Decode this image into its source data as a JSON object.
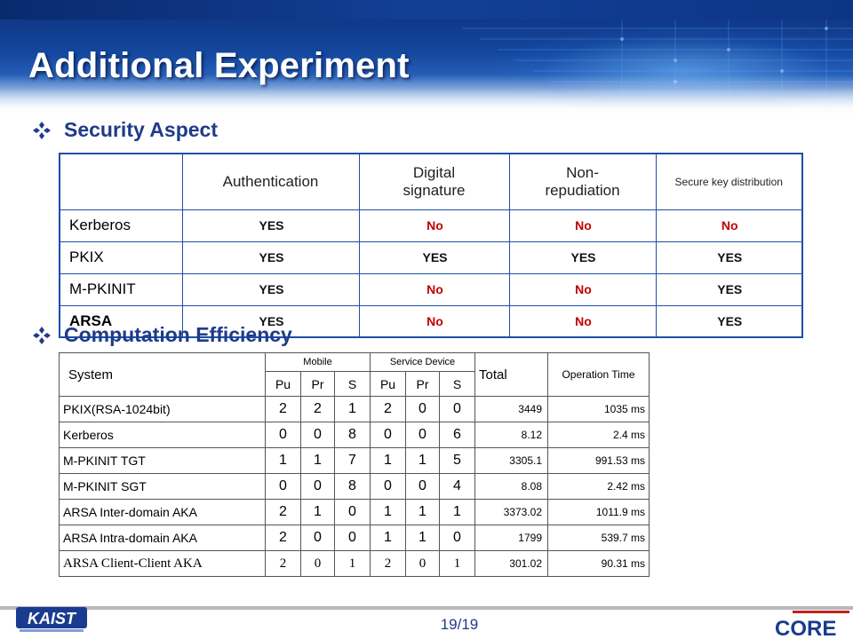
{
  "slide": {
    "title": "Additional Experiment",
    "page_number": "19/19"
  },
  "section_security": {
    "heading": "Security Aspect",
    "columns": [
      "Authentication",
      "Digital signature",
      "Non-repudiation",
      "Secure key distribution"
    ],
    "columns_display": [
      "Authentication",
      "Digital",
      "signature",
      "Non-",
      "repudiation",
      "Secure key distribution"
    ],
    "rows": [
      {
        "system": "Kerberos",
        "values": [
          "YES",
          "No",
          "No",
          "No"
        ]
      },
      {
        "system": "PKIX",
        "values": [
          "YES",
          "YES",
          "YES",
          "YES"
        ]
      },
      {
        "system": "M-PKINIT",
        "values": [
          "YES",
          "No",
          "No",
          "YES"
        ]
      },
      {
        "system": "ARSA",
        "values": [
          "YES",
          "No",
          "No",
          "YES"
        ]
      }
    ]
  },
  "section_computation": {
    "heading": "Computation Efficiency",
    "header": {
      "system": "System",
      "mobile": "Mobile",
      "service_device": "Service Device",
      "total": "Total",
      "operation_time": "Operation Time",
      "sub": [
        "Pu",
        "Pr",
        "S",
        "Pu",
        "Pr",
        "S"
      ]
    },
    "rows": [
      {
        "system": "PKIX(RSA-1024bit)",
        "counts": [
          "2",
          "2",
          "1",
          "2",
          "0",
          "0"
        ],
        "total": "3449",
        "time": "1035 ms"
      },
      {
        "system": "Kerberos",
        "counts": [
          "0",
          "0",
          "8",
          "0",
          "0",
          "6"
        ],
        "total": "8.12",
        "time": "2.4 ms"
      },
      {
        "system": "M-PKINIT TGT",
        "counts": [
          "1",
          "1",
          "7",
          "1",
          "1",
          "5"
        ],
        "total": "3305.1",
        "time": "991.53 ms"
      },
      {
        "system": "M-PKINIT SGT",
        "counts": [
          "0",
          "0",
          "8",
          "0",
          "0",
          "4"
        ],
        "total": "8.08",
        "time": "2.42 ms"
      },
      {
        "system": "ARSA Inter-domain AKA",
        "counts": [
          "2",
          "1",
          "0",
          "1",
          "1",
          "1"
        ],
        "total": "3373.02",
        "time": "1011.9 ms"
      },
      {
        "system": "ARSA Intra-domain AKA",
        "counts": [
          "2",
          "0",
          "0",
          "1",
          "1",
          "0"
        ],
        "total": "1799",
        "time": "539.7 ms"
      },
      {
        "system": "ARSA Client-Client AKA",
        "counts": [
          "2",
          "0",
          "1",
          "2",
          "0",
          "1"
        ],
        "total": "301.02",
        "time": "90.31 ms"
      }
    ]
  },
  "footer": {
    "left_logo": "KAIST",
    "right_logo": "CORE"
  },
  "colors": {
    "accent": "#1f3b8a",
    "table_border": "#1c4fa8",
    "no_red": "#c00000"
  }
}
